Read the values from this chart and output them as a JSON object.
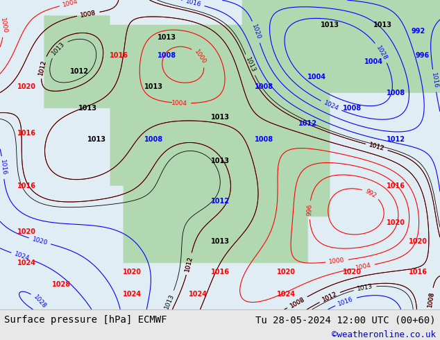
{
  "title_left": "Surface pressure [hPa] ECMWF",
  "title_right": "Tu 28-05-2024 12:00 UTC (00+60)",
  "title_right2": "©weatheronline.co.uk",
  "bg_color": "#e8e8e8",
  "map_bg": "#f0f0f0",
  "bottom_bar_color": "#f0f0f0",
  "text_color_black": "#000000",
  "text_color_blue": "#0000cc",
  "title_fontsize": 10,
  "watermark_fontsize": 9,
  "fig_width": 6.34,
  "fig_height": 4.9,
  "dpi": 100
}
